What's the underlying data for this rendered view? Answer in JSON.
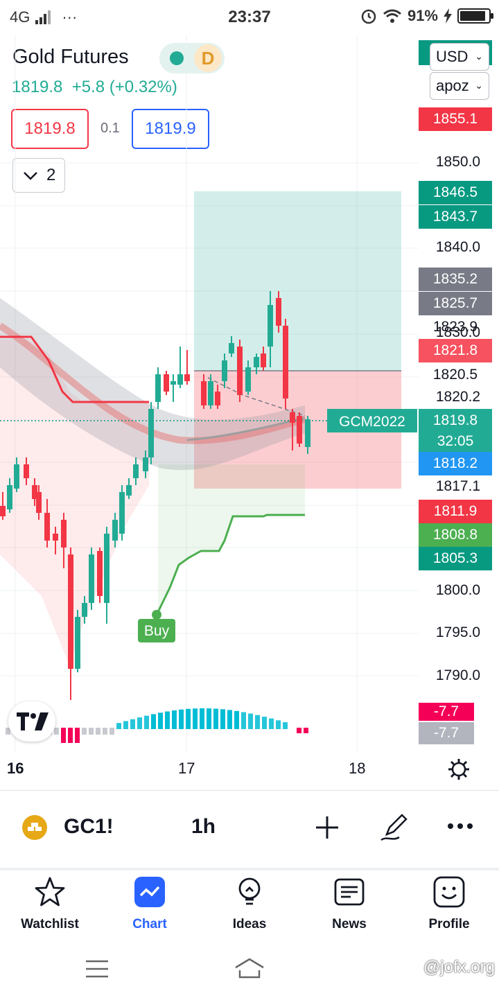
{
  "status_bar": {
    "network": "4G",
    "dots": "···",
    "time": "23:37",
    "battery": "91%",
    "battery_fraction": 0.91
  },
  "header": {
    "title": "Gold Futures",
    "session_badge": "D",
    "price_line": "1819.8  +5.8 (+0.32%)",
    "sell_price": "1819.8",
    "spread": "0.1",
    "buy_price": "1819.9",
    "indicators_count": "2",
    "currency": "USD",
    "unit": "apoz"
  },
  "price_scale": {
    "ticks": [
      "1850.0",
      "1840.0",
      "1830.0",
      "1820.2",
      "1817.1",
      "1800.0",
      "1795.0",
      "1790.0"
    ],
    "badges": [
      {
        "text": "1855.1",
        "color": "#f23645"
      },
      {
        "text": "1846.5",
        "color": "#089981"
      },
      {
        "text": "1843.7",
        "color": "#089981"
      },
      {
        "text": "1835.2",
        "color": "#787b86"
      },
      {
        "text": "1825.7",
        "color": "#787b86"
      },
      {
        "text": "1823.9",
        "color": "#ffffff"
      },
      {
        "text": "1821.8",
        "color": "#f7525f"
      },
      {
        "text": "1820.5",
        "color": "#ffffff"
      },
      {
        "text": "1818.2",
        "color": "#2196f3"
      },
      {
        "text": "1811.9",
        "color": "#f23645"
      },
      {
        "text": "1808.8",
        "color": "#4caf50"
      },
      {
        "text": "1805.3",
        "color": "#089981"
      }
    ],
    "last_price": "1819.8",
    "countdown": "32:05",
    "contract_label": "GCM2022",
    "osc_badge_1": "-7.7",
    "osc_badge_2": "-7.7"
  },
  "chart": {
    "buy_label": "Buy"
  },
  "time_axis": {
    "labels": [
      "16",
      "17",
      "18"
    ]
  },
  "toolbar": {
    "symbol": "GC1!",
    "interval": "1h"
  },
  "tabs": [
    {
      "label": "Watchlist",
      "icon": "star-icon"
    },
    {
      "label": "Chart",
      "icon": "chart-icon"
    },
    {
      "label": "Ideas",
      "icon": "bulb-icon"
    },
    {
      "label": "News",
      "icon": "news-icon"
    },
    {
      "label": "Profile",
      "icon": "smiley-icon"
    }
  ],
  "active_tab": "Chart",
  "watermark": "@jofx.org",
  "colors": {
    "up": "#22ab94",
    "down": "#f23645",
    "accent": "#2962ff"
  }
}
